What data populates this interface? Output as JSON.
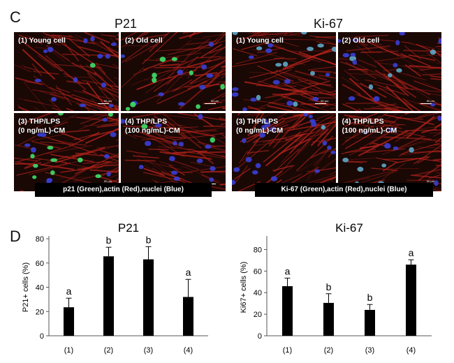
{
  "panel_c": {
    "letter": "C",
    "groups": [
      {
        "title": "P21",
        "stain_caption": "p21 (Green),actin (Red),nuclei (Blue)",
        "nucleus_color": "#3ee06a",
        "images": [
          {
            "label": "(1) Young cell",
            "scale_label": "50 µm"
          },
          {
            "label": "(2) Old cell",
            "scale_label": "50 µm"
          },
          {
            "label": "(3) THP/LPS\n(0 ng/mL)-CM",
            "scale_label": "50 µm"
          },
          {
            "label": "(4) THP/LPS\n(100 ng/mL)-CM",
            "scale_label": ""
          }
        ]
      },
      {
        "title": "Ki-67",
        "stain_caption": "Ki-67 (Green),actin (Red),nuclei (Blue)",
        "nucleus_color": "#5fa8c8",
        "images": [
          {
            "label": "(1) Young cell",
            "scale_label": "50 µm"
          },
          {
            "label": "(2) Old cell",
            "scale_label": "50 µm"
          },
          {
            "label": "(3) THP/LPS\n(0 ng/mL)-CM",
            "scale_label": ""
          },
          {
            "label": "(4) THP/LPS\n(100 ng/mL)-CM",
            "scale_label": "50 µm"
          }
        ]
      }
    ]
  },
  "panel_d": {
    "letter": "D"
  },
  "colors": {
    "bar": "#000000",
    "actin": "#b8231c",
    "nuclei": "#3a3fd6",
    "background": "#1a0805"
  },
  "chart_data": [
    {
      "type": "bar",
      "title": "P21",
      "xlabel": "",
      "ylabel": "P21+ cells (%)",
      "categories": [
        "(1)",
        "(2)",
        "(3)",
        "(4)"
      ],
      "values": [
        23.5,
        65.5,
        63,
        32
      ],
      "errors": [
        7.5,
        7.5,
        10.5,
        14.5
      ],
      "significance": [
        "a",
        "b",
        "b",
        "a"
      ],
      "ylim": [
        0,
        80
      ],
      "yticks": [
        0,
        20,
        40,
        60,
        80
      ],
      "grid": false
    },
    {
      "type": "bar",
      "title": "Ki-67",
      "xlabel": "",
      "ylabel": "Ki67+ cells (%)",
      "categories": [
        "(1)",
        "(2)",
        "(3)",
        "(4)"
      ],
      "values": [
        46,
        30.5,
        24,
        66
      ],
      "errors": [
        7.5,
        8.5,
        5,
        4.5
      ],
      "significance": [
        "a",
        "b",
        "b",
        "a"
      ],
      "ylim": [
        0,
        90
      ],
      "yticks": [
        0,
        20,
        40,
        60,
        80
      ],
      "grid": false
    }
  ]
}
